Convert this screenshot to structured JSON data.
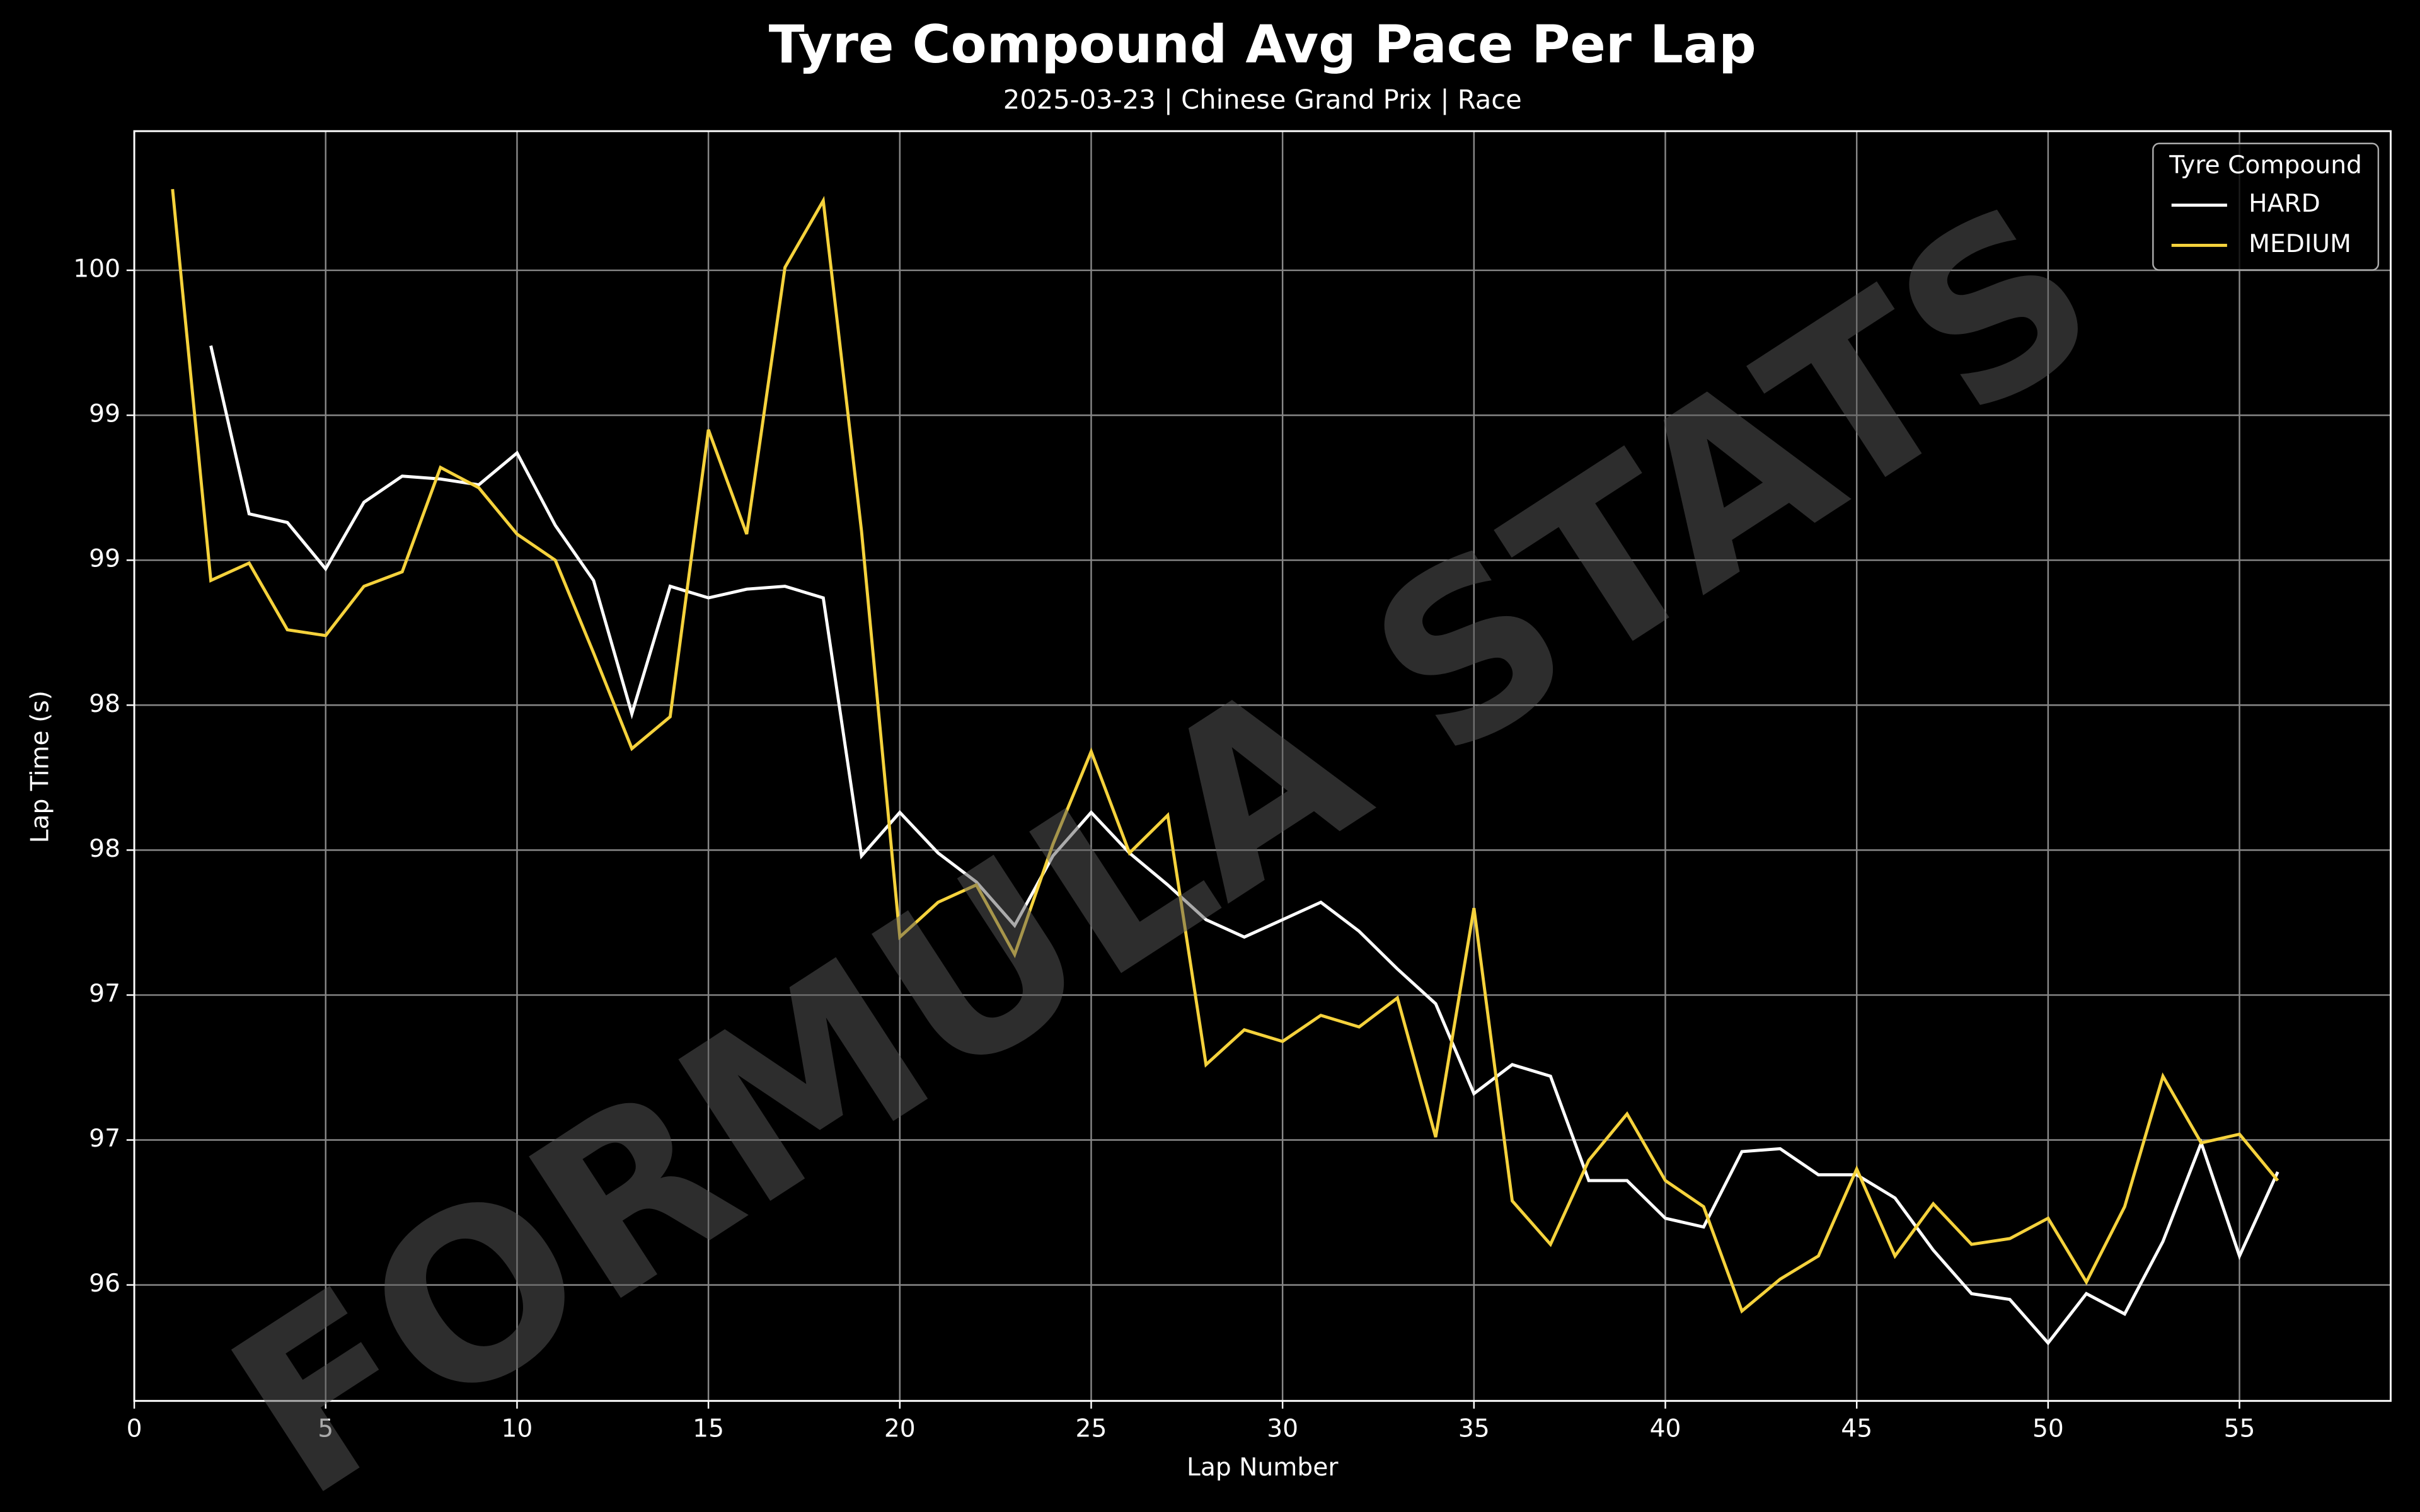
{
  "chart_data": {
    "type": "line",
    "title": "Tyre Compound Avg Pace Per Lap",
    "subtitle": "2025-03-23 | Chinese Grand Prix | Race",
    "watermark": "FORMULA STATS",
    "x_label": "Lap Number",
    "y_label": "Lap Time (s)",
    "legend_title": "Tyre Compound",
    "legend_position": "upper right",
    "grid": true,
    "x": [
      1,
      2,
      3,
      4,
      5,
      6,
      7,
      8,
      9,
      10,
      11,
      12,
      13,
      14,
      15,
      16,
      17,
      18,
      19,
      20,
      21,
      22,
      23,
      24,
      25,
      26,
      27,
      28,
      29,
      30,
      31,
      32,
      33,
      34,
      35,
      36,
      37,
      38,
      39,
      40,
      41,
      42,
      43,
      44,
      45,
      46,
      47,
      48,
      49,
      50,
      51,
      52,
      53,
      54,
      55,
      56
    ],
    "series": [
      {
        "name": "HARD",
        "color": "#ffffff",
        "values": [
          null,
          99.24,
          98.66,
          98.63,
          98.47,
          98.7,
          98.79,
          98.78,
          98.76,
          98.87,
          98.62,
          98.43,
          97.97,
          98.41,
          98.37,
          98.4,
          98.41,
          98.37,
          97.48,
          97.63,
          97.49,
          97.39,
          97.24,
          97.48,
          97.63,
          97.49,
          97.38,
          97.26,
          97.2,
          97.26,
          97.32,
          97.22,
          97.09,
          96.97,
          96.66,
          96.76,
          96.72,
          96.36,
          96.36,
          96.23,
          96.2,
          96.46,
          96.47,
          96.38,
          96.38,
          96.3,
          96.12,
          95.97,
          95.95,
          95.8,
          95.97,
          95.9,
          96.15,
          96.49,
          96.1,
          96.39
        ]
      },
      {
        "name": "MEDIUM",
        "color": "#f5d23c",
        "values": [
          99.78,
          98.43,
          98.49,
          98.26,
          98.24,
          98.41,
          98.46,
          98.82,
          98.75,
          98.59,
          98.5,
          98.18,
          97.85,
          97.96,
          98.95,
          98.59,
          99.51,
          99.74,
          98.6,
          97.2,
          97.32,
          97.38,
          97.14,
          97.52,
          97.84,
          97.49,
          97.62,
          96.76,
          96.88,
          96.84,
          96.93,
          96.89,
          96.99,
          96.51,
          97.3,
          96.29,
          96.14,
          96.43,
          96.59,
          96.36,
          96.27,
          95.91,
          96.02,
          96.1,
          96.4,
          96.1,
          96.28,
          96.14,
          96.16,
          96.23,
          96.01,
          96.27,
          96.72,
          96.49,
          96.52,
          96.36
        ]
      }
    ],
    "xlim": [
      0,
      58.95
    ],
    "xticks": [
      0,
      5,
      10,
      15,
      20,
      25,
      30,
      35,
      40,
      45,
      50,
      55
    ],
    "ylim": [
      95.6,
      99.98
    ],
    "yticks": [
      96,
      {
        "value": 96.5,
        "label": "97"
      },
      97,
      {
        "value": 97.5,
        "label": "98"
      },
      98,
      {
        "value": 98.5,
        "label": "99"
      },
      99,
      {
        "value": 99.5,
        "label": "100"
      }
    ]
  }
}
